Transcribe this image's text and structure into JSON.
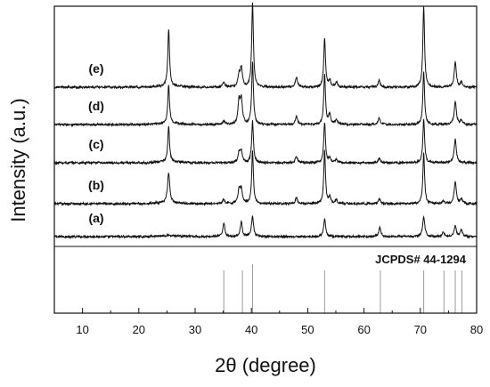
{
  "chart_data": {
    "type": "line",
    "xlabel": "2θ (degree)",
    "ylabel": "Intensity (a.u.)",
    "xlim": [
      5,
      80
    ],
    "xticks": [
      10,
      20,
      30,
      40,
      50,
      60,
      70,
      80
    ],
    "xtick_labels": [
      "10",
      "20",
      "30",
      "40",
      "50",
      "60",
      "70",
      "80"
    ],
    "y_scale": "arbitrary units, stacked offsets",
    "series": [
      {
        "name": "(a)",
        "baseline": 0,
        "peaks": [
          [
            35.1,
            0.16
          ],
          [
            38.2,
            0.17
          ],
          [
            40.2,
            0.23
          ],
          [
            53.0,
            0.2
          ],
          [
            62.8,
            0.11
          ],
          [
            70.6,
            0.24
          ],
          [
            74.1,
            0.05
          ],
          [
            76.2,
            0.13
          ],
          [
            77.3,
            0.08
          ]
        ]
      },
      {
        "name": "(b)",
        "baseline": 1,
        "peaks": [
          [
            25.3,
            0.36
          ],
          [
            35.1,
            0.05
          ],
          [
            37.8,
            0.16
          ],
          [
            38.2,
            0.17
          ],
          [
            40.2,
            0.62
          ],
          [
            48.0,
            0.07
          ],
          [
            53.0,
            0.62
          ],
          [
            53.9,
            0.07
          ],
          [
            55.1,
            0.04
          ],
          [
            62.7,
            0.06
          ],
          [
            70.6,
            0.6
          ],
          [
            74.1,
            0.03
          ],
          [
            76.2,
            0.26
          ],
          [
            77.3,
            0.05
          ]
        ]
      },
      {
        "name": "(c)",
        "baseline": 2,
        "peaks": [
          [
            25.3,
            0.42
          ],
          [
            37.8,
            0.11
          ],
          [
            38.2,
            0.14
          ],
          [
            40.2,
            0.5
          ],
          [
            48.0,
            0.08
          ],
          [
            53.0,
            0.48
          ],
          [
            53.9,
            0.05
          ],
          [
            55.1,
            0.04
          ],
          [
            62.7,
            0.05
          ],
          [
            70.6,
            0.52
          ],
          [
            76.2,
            0.28
          ]
        ]
      },
      {
        "name": "(d)",
        "baseline": 3,
        "peaks": [
          [
            25.3,
            0.46
          ],
          [
            35.1,
            0.04
          ],
          [
            37.8,
            0.26
          ],
          [
            38.2,
            0.29
          ],
          [
            40.2,
            0.74
          ],
          [
            48.0,
            0.1
          ],
          [
            53.0,
            0.6
          ],
          [
            53.9,
            0.12
          ],
          [
            55.1,
            0.06
          ],
          [
            62.7,
            0.08
          ],
          [
            70.6,
            0.62
          ],
          [
            76.2,
            0.28
          ],
          [
            77.3,
            0.05
          ]
        ]
      },
      {
        "name": "(e)",
        "baseline": 4,
        "peaks": [
          [
            25.3,
            0.68
          ],
          [
            35.1,
            0.06
          ],
          [
            37.8,
            0.14
          ],
          [
            38.2,
            0.22
          ],
          [
            40.2,
            1.0
          ],
          [
            48.0,
            0.12
          ],
          [
            53.0,
            0.58
          ],
          [
            53.9,
            0.08
          ],
          [
            55.1,
            0.06
          ],
          [
            62.7,
            0.08
          ],
          [
            70.6,
            0.96
          ],
          [
            76.2,
            0.3
          ],
          [
            77.3,
            0.05
          ]
        ]
      }
    ],
    "reference": {
      "label": "JCPDS# 44-1294",
      "lines": [
        35.1,
        38.4,
        40.2,
        53.0,
        62.9,
        70.6,
        74.2,
        76.2,
        77.4
      ]
    }
  }
}
